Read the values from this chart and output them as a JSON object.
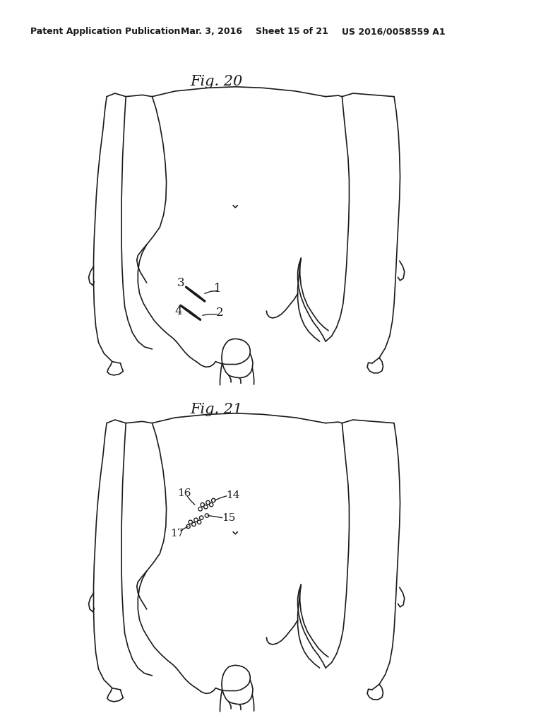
{
  "background_color": "#ffffff",
  "header_text": "Patent Application Publication",
  "header_date": "Mar. 3, 2016",
  "header_sheet": "Sheet 15 of 21",
  "header_patent": "US 2016/0058559 A1",
  "fig20_title": "Fig. 20",
  "fig21_title": "Fig. 21",
  "line_color": "#1a1a1a",
  "line_width": 1.2
}
